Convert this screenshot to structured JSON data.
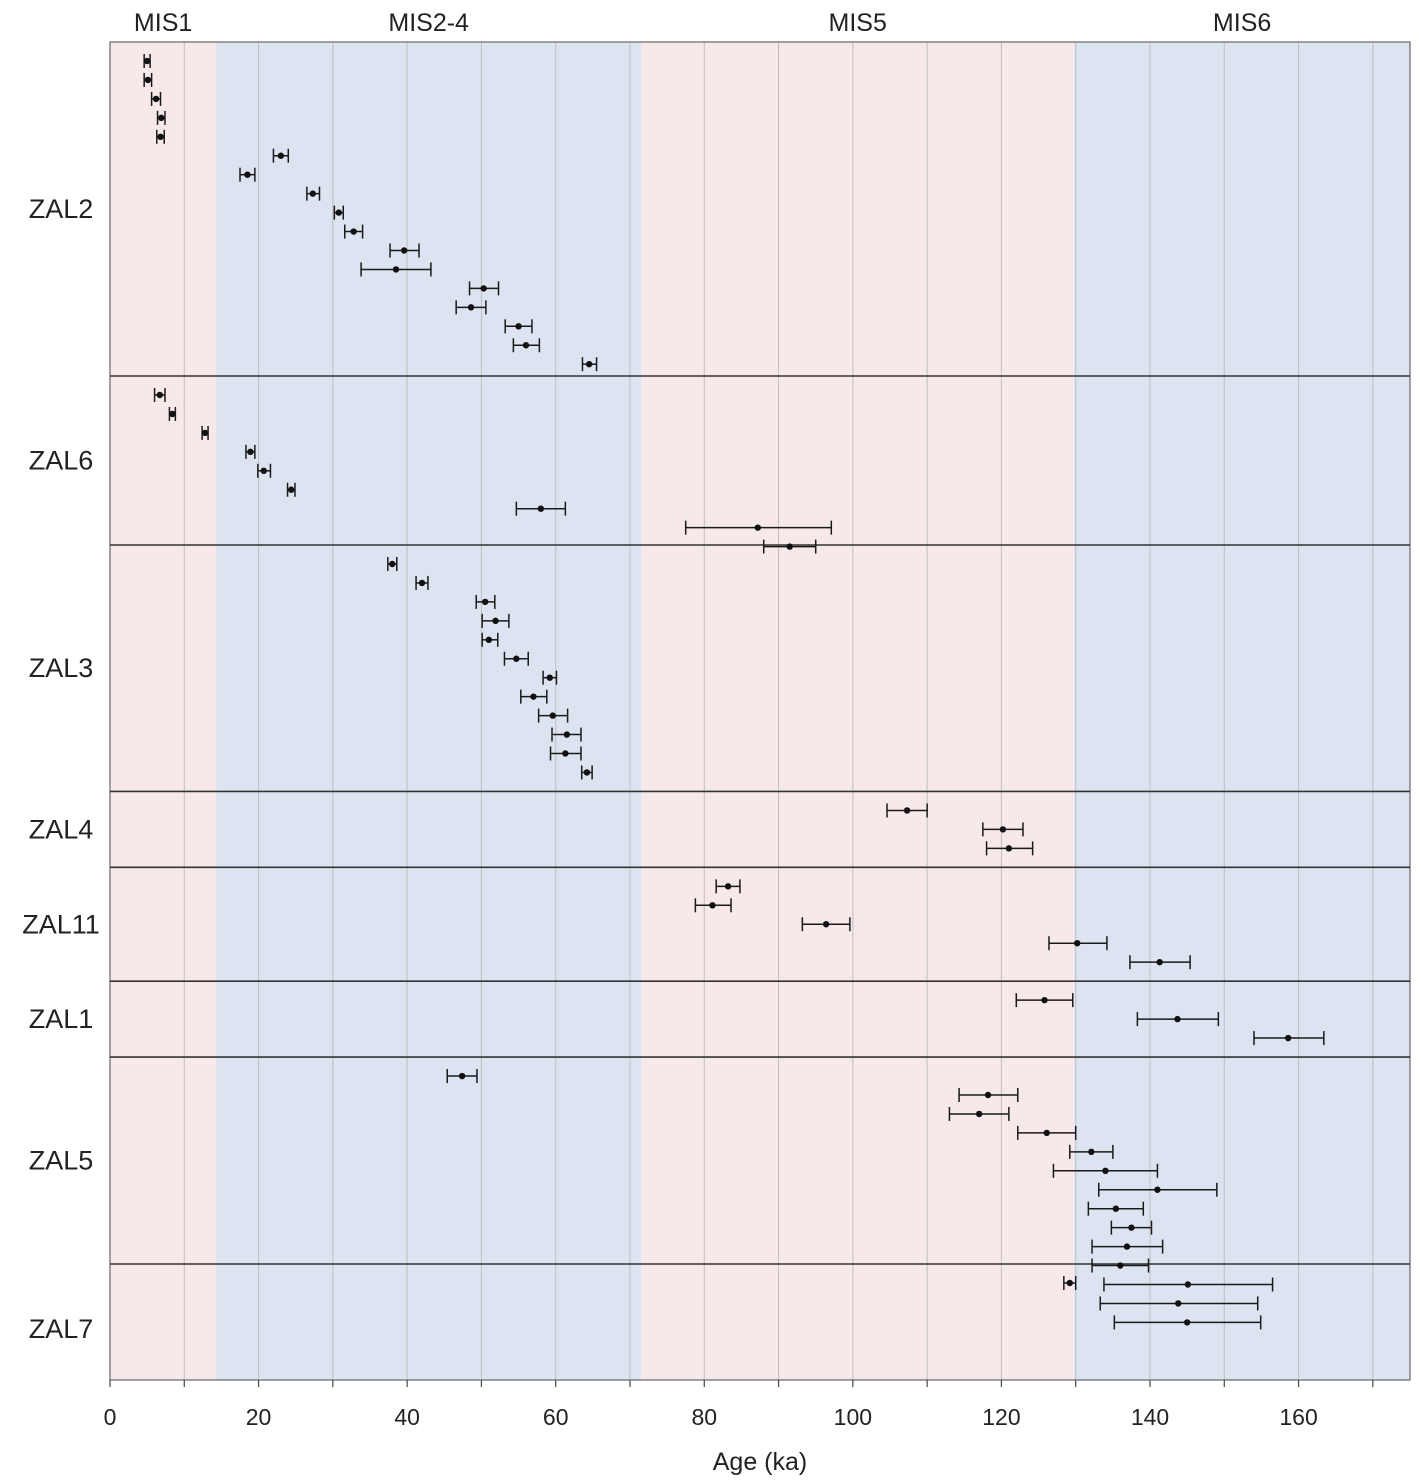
{
  "chart_data": {
    "type": "scatter",
    "xlabel": "Age (ka)",
    "xlim": [
      0,
      175
    ],
    "xticks": [
      0,
      20,
      40,
      60,
      80,
      100,
      120,
      140,
      160
    ],
    "minor_gridlines_every": 10,
    "stages": [
      {
        "name": "MIS1",
        "from": 0,
        "to": 14.3,
        "color": "#f7e8e9"
      },
      {
        "name": "MIS2-4",
        "from": 14.3,
        "to": 71.5,
        "color": "#dbe4f0"
      },
      {
        "name": "MIS5",
        "from": 71.5,
        "to": 129.8,
        "color": "#f7e8e9"
      },
      {
        "name": "MIS6",
        "from": 129.8,
        "to": 175,
        "color": "#dbe4f0"
      }
    ],
    "groups": [
      {
        "name": "ZAL2",
        "points": [
          {
            "age": 5.0,
            "low": 4.6,
            "high": 5.4
          },
          {
            "age": 5.1,
            "low": 4.6,
            "high": 5.6
          },
          {
            "age": 6.2,
            "low": 5.6,
            "high": 6.8
          },
          {
            "age": 6.9,
            "low": 6.4,
            "high": 7.4
          },
          {
            "age": 6.8,
            "low": 6.3,
            "high": 7.3
          },
          {
            "age": 23.0,
            "low": 22.0,
            "high": 24.0
          },
          {
            "age": 18.5,
            "low": 17.5,
            "high": 19.5
          },
          {
            "age": 27.3,
            "low": 26.5,
            "high": 28.2
          },
          {
            "age": 30.8,
            "low": 30.2,
            "high": 31.4
          },
          {
            "age": 32.8,
            "low": 31.6,
            "high": 34.0
          },
          {
            "age": 39.6,
            "low": 37.7,
            "high": 41.6
          },
          {
            "age": 38.5,
            "low": 33.8,
            "high": 43.2
          },
          {
            "age": 50.3,
            "low": 48.4,
            "high": 52.3
          },
          {
            "age": 48.6,
            "low": 46.6,
            "high": 50.6
          },
          {
            "age": 55.0,
            "low": 53.2,
            "high": 56.8
          },
          {
            "age": 56.0,
            "low": 54.3,
            "high": 57.8
          },
          {
            "age": 64.5,
            "low": 63.6,
            "high": 65.5
          }
        ]
      },
      {
        "name": "ZAL6",
        "points": [
          {
            "age": 6.7,
            "low": 6.0,
            "high": 7.4
          },
          {
            "age": 8.4,
            "low": 8.0,
            "high": 8.8
          },
          {
            "age": 12.8,
            "low": 12.4,
            "high": 13.2
          },
          {
            "age": 18.9,
            "low": 18.3,
            "high": 19.5
          },
          {
            "age": 20.7,
            "low": 19.9,
            "high": 21.6
          },
          {
            "age": 24.4,
            "low": 23.9,
            "high": 24.9
          },
          {
            "age": 58.0,
            "low": 54.7,
            "high": 61.3
          },
          {
            "age": 87.2,
            "low": 77.5,
            "high": 97.1
          },
          {
            "age": 91.5,
            "low": 88.0,
            "high": 95.0
          }
        ]
      },
      {
        "name": "ZAL3",
        "points": [
          {
            "age": 38.0,
            "low": 37.4,
            "high": 38.6
          },
          {
            "age": 42.0,
            "low": 41.2,
            "high": 42.8
          },
          {
            "age": 50.5,
            "low": 49.3,
            "high": 51.8
          },
          {
            "age": 51.9,
            "low": 50.1,
            "high": 53.7
          },
          {
            "age": 51.0,
            "low": 50.1,
            "high": 52.2
          },
          {
            "age": 54.7,
            "low": 53.1,
            "high": 56.3
          },
          {
            "age": 59.2,
            "low": 58.3,
            "high": 60.1
          },
          {
            "age": 57.0,
            "low": 55.3,
            "high": 58.8
          },
          {
            "age": 59.6,
            "low": 57.7,
            "high": 61.6
          },
          {
            "age": 61.5,
            "low": 59.5,
            "high": 63.4
          },
          {
            "age": 61.3,
            "low": 59.3,
            "high": 63.4
          },
          {
            "age": 64.2,
            "low": 63.5,
            "high": 64.9
          }
        ]
      },
      {
        "name": "ZAL4",
        "points": [
          {
            "age": 107.3,
            "low": 104.6,
            "high": 110.0
          },
          {
            "age": 120.2,
            "low": 117.5,
            "high": 122.9
          },
          {
            "age": 121.0,
            "low": 118.0,
            "high": 124.2
          }
        ]
      },
      {
        "name": "ZAL11",
        "points": [
          {
            "age": 83.2,
            "low": 81.6,
            "high": 84.8
          },
          {
            "age": 81.1,
            "low": 78.8,
            "high": 83.6
          },
          {
            "age": 96.4,
            "low": 93.2,
            "high": 99.6
          },
          {
            "age": 130.2,
            "low": 126.4,
            "high": 134.2
          },
          {
            "age": 141.3,
            "low": 137.3,
            "high": 145.4
          }
        ]
      },
      {
        "name": "ZAL1",
        "points": [
          {
            "age": 125.8,
            "low": 122.0,
            "high": 129.6
          },
          {
            "age": 143.7,
            "low": 138.3,
            "high": 149.2
          },
          {
            "age": 158.6,
            "low": 154.0,
            "high": 163.4
          }
        ]
      },
      {
        "name": "ZAL5",
        "points": [
          {
            "age": 47.4,
            "low": 45.4,
            "high": 49.4
          },
          {
            "age": 118.2,
            "low": 114.3,
            "high": 122.2
          },
          {
            "age": 117.0,
            "low": 113.0,
            "high": 121.0
          },
          {
            "age": 126.1,
            "low": 122.2,
            "high": 130.0
          },
          {
            "age": 132.1,
            "low": 129.2,
            "high": 135.0
          },
          {
            "age": 134.0,
            "low": 127.0,
            "high": 141.0
          },
          {
            "age": 141.0,
            "low": 133.1,
            "high": 149.0
          },
          {
            "age": 135.4,
            "low": 131.7,
            "high": 139.1
          },
          {
            "age": 137.5,
            "low": 134.8,
            "high": 140.2
          },
          {
            "age": 136.9,
            "low": 132.2,
            "high": 141.7
          },
          {
            "age": 136.0,
            "low": 132.2,
            "high": 139.8
          },
          {
            "age": 145.1,
            "low": 133.8,
            "high": 156.5
          },
          {
            "age": 143.8,
            "low": 133.3,
            "high": 154.5
          },
          {
            "age": 145.0,
            "low": 135.2,
            "high": 154.9
          }
        ]
      },
      {
        "name": "ZAL7",
        "points": [
          {
            "age": 129.2,
            "low": 128.4,
            "high": 130.0
          }
        ]
      }
    ]
  }
}
